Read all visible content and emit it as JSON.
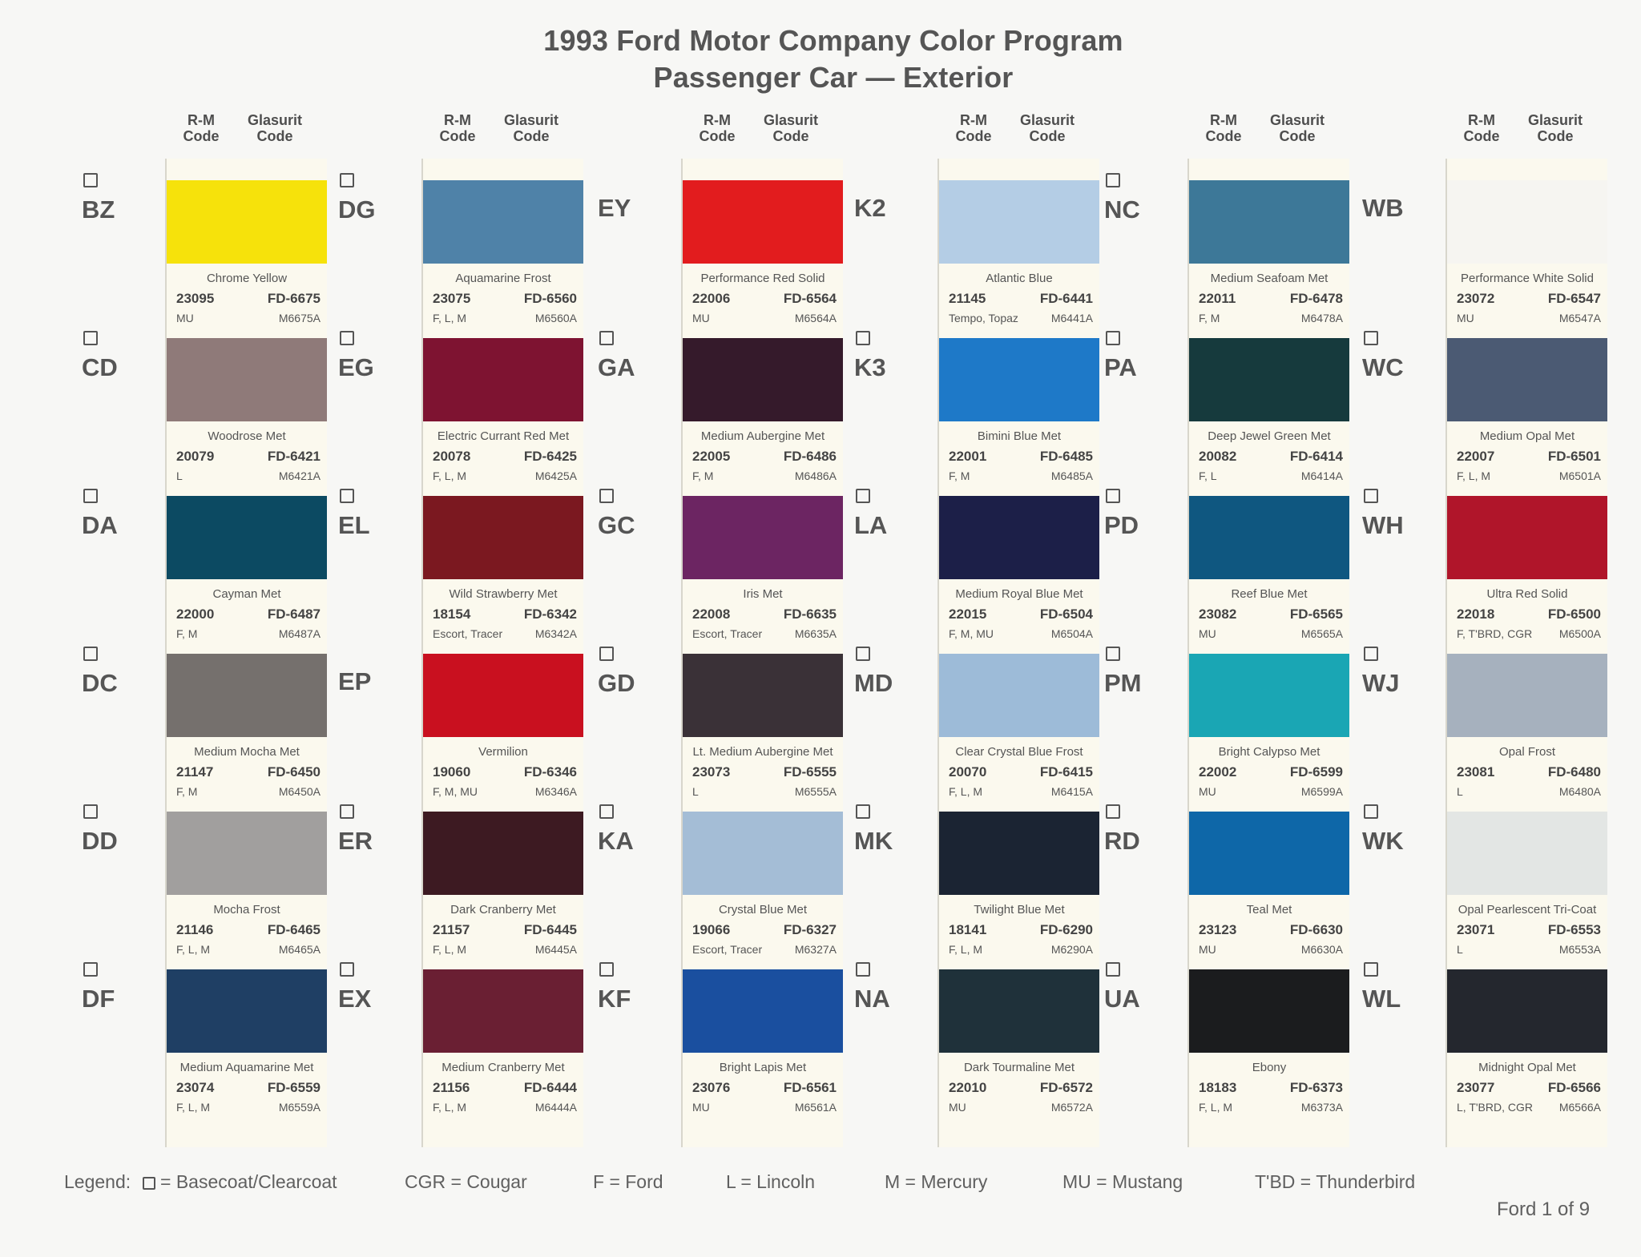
{
  "title_line1": "1993 Ford Motor Company Color Program",
  "title_line2": "Passenger Car — Exterior",
  "col_header": {
    "rm": "R-M\nCode",
    "glasurit": "Glasurit\nCode"
  },
  "columns": [
    {
      "colors": [
        {
          "code": "BZ",
          "name": "Chrome Yellow",
          "rm": "23095",
          "glasurit": "FD-6675",
          "models": "MU",
          "mcode": "M6675A",
          "hex": "#f6e20b",
          "bc": true
        },
        {
          "code": "CD",
          "name": "Woodrose Met",
          "rm": "20079",
          "glasurit": "FD-6421",
          "models": "L",
          "mcode": "M6421A",
          "hex": "#8f7a79",
          "bc": true
        },
        {
          "code": "DA",
          "name": "Cayman Met",
          "rm": "22000",
          "glasurit": "FD-6487",
          "models": "F, M",
          "mcode": "M6487A",
          "hex": "#0c4a62",
          "bc": true
        },
        {
          "code": "DC",
          "name": "Medium Mocha Met",
          "rm": "21147",
          "glasurit": "FD-6450",
          "models": "F, M",
          "mcode": "M6450A",
          "hex": "#75706d",
          "bc": true
        },
        {
          "code": "DD",
          "name": "Mocha Frost",
          "rm": "21146",
          "glasurit": "FD-6465",
          "models": "F, L, M",
          "mcode": "M6465A",
          "hex": "#a19f9e",
          "bc": true
        },
        {
          "code": "DF",
          "name": "Medium Aquamarine Met",
          "rm": "23074",
          "glasurit": "FD-6559",
          "models": "F, L, M",
          "mcode": "M6559A",
          "hex": "#1f3f64",
          "bc": true
        }
      ]
    },
    {
      "colors": [
        {
          "code": "DG",
          "name": "Aquamarine Frost",
          "rm": "23075",
          "glasurit": "FD-6560",
          "models": "F, L, M",
          "mcode": "M6560A",
          "hex": "#4f82a8",
          "bc": true
        },
        {
          "code": "EG",
          "name": "Electric Currant Red Met",
          "rm": "20078",
          "glasurit": "FD-6425",
          "models": "F, L, M",
          "mcode": "M6425A",
          "hex": "#7e1331",
          "bc": true
        },
        {
          "code": "EL",
          "name": "Wild Strawberry Met",
          "rm": "18154",
          "glasurit": "FD-6342",
          "models": "Escort, Tracer",
          "mcode": "M6342A",
          "hex": "#7b1820",
          "bc": true
        },
        {
          "code": "EP",
          "name": "Vermilion",
          "rm": "19060",
          "glasurit": "FD-6346",
          "models": "F, M, MU",
          "mcode": "M6346A",
          "hex": "#c9101f",
          "bc": false
        },
        {
          "code": "ER",
          "name": "Dark Cranberry Met",
          "rm": "21157",
          "glasurit": "FD-6445",
          "models": "F, L, M",
          "mcode": "M6445A",
          "hex": "#3d1a22",
          "bc": true
        },
        {
          "code": "EX",
          "name": "Medium Cranberry Met",
          "rm": "21156",
          "glasurit": "FD-6444",
          "models": "F, L, M",
          "mcode": "M6444A",
          "hex": "#6a1f33",
          "bc": true
        }
      ]
    },
    {
      "colors": [
        {
          "code": "EY",
          "name": "Performance Red Solid",
          "rm": "22006",
          "glasurit": "FD-6564",
          "models": "MU",
          "mcode": "M6564A",
          "hex": "#e21c1e",
          "bc": false
        },
        {
          "code": "GA",
          "name": "Medium Aubergine Met",
          "rm": "22005",
          "glasurit": "FD-6486",
          "models": "F, M",
          "mcode": "M6486A",
          "hex": "#351a2b",
          "bc": true
        },
        {
          "code": "GC",
          "name": "Iris Met",
          "rm": "22008",
          "glasurit": "FD-6635",
          "models": "Escort, Tracer",
          "mcode": "M6635A",
          "hex": "#6c2562",
          "bc": true
        },
        {
          "code": "GD",
          "name": "Lt. Medium Aubergine Met",
          "rm": "23073",
          "glasurit": "FD-6555",
          "models": "L",
          "mcode": "M6555A",
          "hex": "#3a3137",
          "bc": true
        },
        {
          "code": "KA",
          "name": "Crystal Blue Met",
          "rm": "19066",
          "glasurit": "FD-6327",
          "models": "Escort, Tracer",
          "mcode": "M6327A",
          "hex": "#a4bdd6",
          "bc": true
        },
        {
          "code": "KF",
          "name": "Bright Lapis Met",
          "rm": "23076",
          "glasurit": "FD-6561",
          "models": "MU",
          "mcode": "M6561A",
          "hex": "#1a4f9f",
          "bc": true
        }
      ]
    },
    {
      "colors": [
        {
          "code": "K2",
          "name": "Atlantic Blue",
          "rm": "21145",
          "glasurit": "FD-6441",
          "models": "Tempo, Topaz",
          "mcode": "M6441A",
          "hex": "#b4cde5",
          "bc": false
        },
        {
          "code": "K3",
          "name": "Bimini Blue Met",
          "rm": "22001",
          "glasurit": "FD-6485",
          "models": "F, M",
          "mcode": "M6485A",
          "hex": "#1e79c8",
          "bc": true
        },
        {
          "code": "LA",
          "name": "Medium Royal Blue Met",
          "rm": "22015",
          "glasurit": "FD-6504",
          "models": "F, M, MU",
          "mcode": "M6504A",
          "hex": "#1c1f48",
          "bc": true
        },
        {
          "code": "MD",
          "name": "Clear Crystal Blue Frost",
          "rm": "20070",
          "glasurit": "FD-6415",
          "models": "F, L, M",
          "mcode": "M6415A",
          "hex": "#9dbbd8",
          "bc": true
        },
        {
          "code": "MK",
          "name": "Twilight Blue Met",
          "rm": "18141",
          "glasurit": "FD-6290",
          "models": "F, L, M",
          "mcode": "M6290A",
          "hex": "#1b2433",
          "bc": true
        },
        {
          "code": "NA",
          "name": "Dark Tourmaline Met",
          "rm": "22010",
          "glasurit": "FD-6572",
          "models": "MU",
          "mcode": "M6572A",
          "hex": "#1f313a",
          "bc": true
        }
      ]
    },
    {
      "colors": [
        {
          "code": "NC",
          "name": "Medium Seafoam Met",
          "rm": "22011",
          "glasurit": "FD-6478",
          "models": "F, M",
          "mcode": "M6478A",
          "hex": "#3d7898",
          "bc": true
        },
        {
          "code": "PA",
          "name": "Deep Jewel Green Met",
          "rm": "20082",
          "glasurit": "FD-6414",
          "models": "F, L",
          "mcode": "M6414A",
          "hex": "#163a3d",
          "bc": true
        },
        {
          "code": "PD",
          "name": "Reef Blue Met",
          "rm": "23082",
          "glasurit": "FD-6565",
          "models": "MU",
          "mcode": "M6565A",
          "hex": "#0f5780",
          "bc": true
        },
        {
          "code": "PM",
          "name": "Bright Calypso Met",
          "rm": "22002",
          "glasurit": "FD-6599",
          "models": "MU",
          "mcode": "M6599A",
          "hex": "#1aa6b4",
          "bc": true
        },
        {
          "code": "RD",
          "name": "Teal Met",
          "rm": "23123",
          "glasurit": "FD-6630",
          "models": "MU",
          "mcode": "M6630A",
          "hex": "#0e67a8",
          "bc": true
        },
        {
          "code": "UA",
          "name": "Ebony",
          "rm": "18183",
          "glasurit": "FD-6373",
          "models": "F, L, M",
          "mcode": "M6373A",
          "hex": "#1b1c1e",
          "bc": true
        }
      ]
    },
    {
      "colors": [
        {
          "code": "WB",
          "name": "Performance White Solid",
          "rm": "23072",
          "glasurit": "FD-6547",
          "models": "MU",
          "mcode": "M6547A",
          "hex": "#f6f5f1",
          "bc": false
        },
        {
          "code": "WC",
          "name": "Medium Opal Met",
          "rm": "22007",
          "glasurit": "FD-6501",
          "models": "F, L, M",
          "mcode": "M6501A",
          "hex": "#4b5a73",
          "bc": true
        },
        {
          "code": "WH",
          "name": "Ultra Red Solid",
          "rm": "22018",
          "glasurit": "FD-6500",
          "models": "F, T'BRD, CGR",
          "mcode": "M6500A",
          "hex": "#b0152a",
          "bc": true
        },
        {
          "code": "WJ",
          "name": "Opal Frost",
          "rm": "23081",
          "glasurit": "FD-6480",
          "models": "L",
          "mcode": "M6480A",
          "hex": "#a6b1be",
          "bc": true
        },
        {
          "code": "WK",
          "name": "Opal Pearlescent Tri-Coat",
          "rm": "23071",
          "glasurit": "FD-6553",
          "models": "L",
          "mcode": "M6553A",
          "hex": "#e3e6e4",
          "bc": true
        },
        {
          "code": "WL",
          "name": "Midnight Opal Met",
          "rm": "23077",
          "glasurit": "FD-6566",
          "models": "L, T'BRD, CGR",
          "mcode": "M6566A",
          "hex": "#24272e",
          "bc": true
        }
      ]
    }
  ],
  "legend": {
    "label": "Legend:",
    "items": [
      "= Basecoat/Clearcoat",
      "CGR = Cougar",
      "F = Ford",
      "L = Lincoln",
      "M = Mercury",
      "MU = Mustang",
      "T'BD = Thunderbird"
    ]
  },
  "footer": "Ford  1  of  9"
}
